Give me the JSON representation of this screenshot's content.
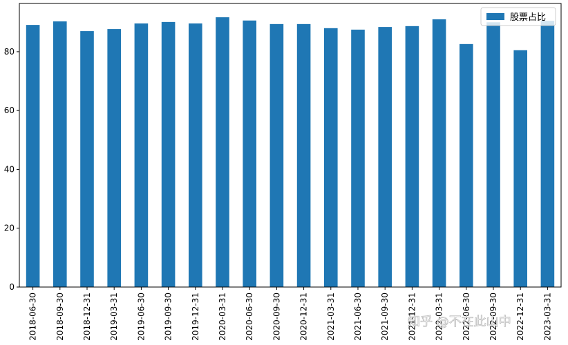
{
  "chart_data": {
    "type": "bar",
    "categories": [
      "2018-06-30",
      "2018-09-30",
      "2018-12-31",
      "2019-03-31",
      "2019-06-30",
      "2019-09-30",
      "2019-12-31",
      "2020-03-31",
      "2020-06-30",
      "2020-09-30",
      "2020-12-31",
      "2021-03-31",
      "2021-06-30",
      "2021-09-30",
      "2021-12-31",
      "2022-03-31",
      "2022-06-30",
      "2022-09-30",
      "2022-12-31",
      "2023-03-31"
    ],
    "series": [
      {
        "name": "股票占比",
        "color": "#1f77b4",
        "values": [
          89.1,
          90.3,
          87.0,
          87.7,
          89.6,
          90.1,
          89.6,
          91.7,
          90.6,
          89.4,
          89.4,
          88.0,
          87.5,
          88.4,
          88.7,
          91.0,
          82.6,
          90.0,
          80.5,
          90.5
        ]
      }
    ],
    "ylim": [
      0,
      96.4
    ],
    "yticks": [
      0,
      20,
      40,
      60,
      80
    ],
    "legend": "upper right",
    "watermark": "知乎 @不在此山中"
  }
}
